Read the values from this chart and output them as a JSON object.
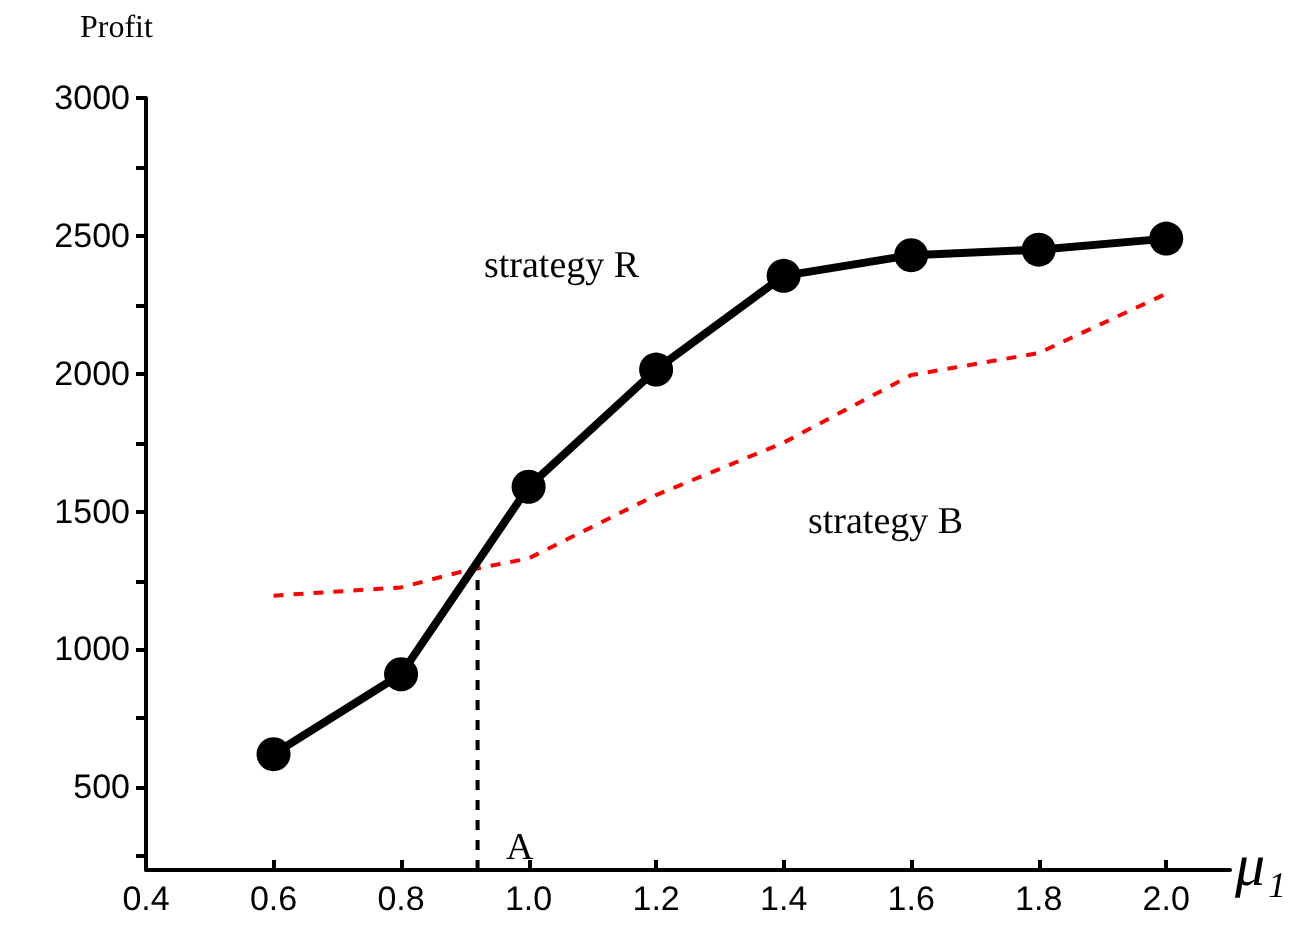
{
  "chart_data": {
    "type": "line",
    "ylabel": "Profit",
    "xlabel": "μ₁",
    "xlim": [
      0.4,
      2.1
    ],
    "xticks": [
      0.4,
      0.6,
      0.8,
      {
        "value": 1,
        "label": "1.0"
      },
      1.2,
      1.4,
      1.6,
      1.8,
      {
        "value": 2,
        "label": "2.0"
      }
    ],
    "ylim": [
      200,
      3000
    ],
    "yticks": [
      {
        "value": 250,
        "label": null
      },
      500,
      {
        "value": 750,
        "label": null
      },
      1000,
      {
        "value": 1250,
        "label": null
      },
      1500,
      {
        "value": 1750,
        "label": null
      },
      2000,
      {
        "value": 2250,
        "label": null
      },
      2500,
      {
        "value": 2750,
        "label": null
      },
      3000
    ],
    "grid": false,
    "series": [
      {
        "color": "#000000",
        "marker": "circle",
        "line_style": "solid",
        "x": [
          0.6,
          0.8,
          1.0,
          1.2,
          1.4,
          1.6,
          1.8,
          2.0
        ],
        "values": [
          620,
          910,
          1590,
          2015,
          2355,
          2430,
          2450,
          2490
        ]
      },
      {
        "color": "#ff0000",
        "marker": "none",
        "line_style": "dashed",
        "x": [
          0.6,
          0.8,
          0.9,
          1.0,
          1.2,
          1.4,
          1.6,
          1.8,
          2.0
        ],
        "values": [
          1195,
          1225,
          1285,
          1330,
          1560,
          1750,
          1995,
          2075,
          2290
        ]
      },
      {
        "color": "#000000",
        "marker": "none",
        "line_style": "dashed",
        "x": [
          0.92,
          0.92
        ],
        "values": [
          200,
          1290
        ]
      }
    ],
    "annotations": [
      "strategy R",
      "strategy B",
      "A"
    ]
  }
}
